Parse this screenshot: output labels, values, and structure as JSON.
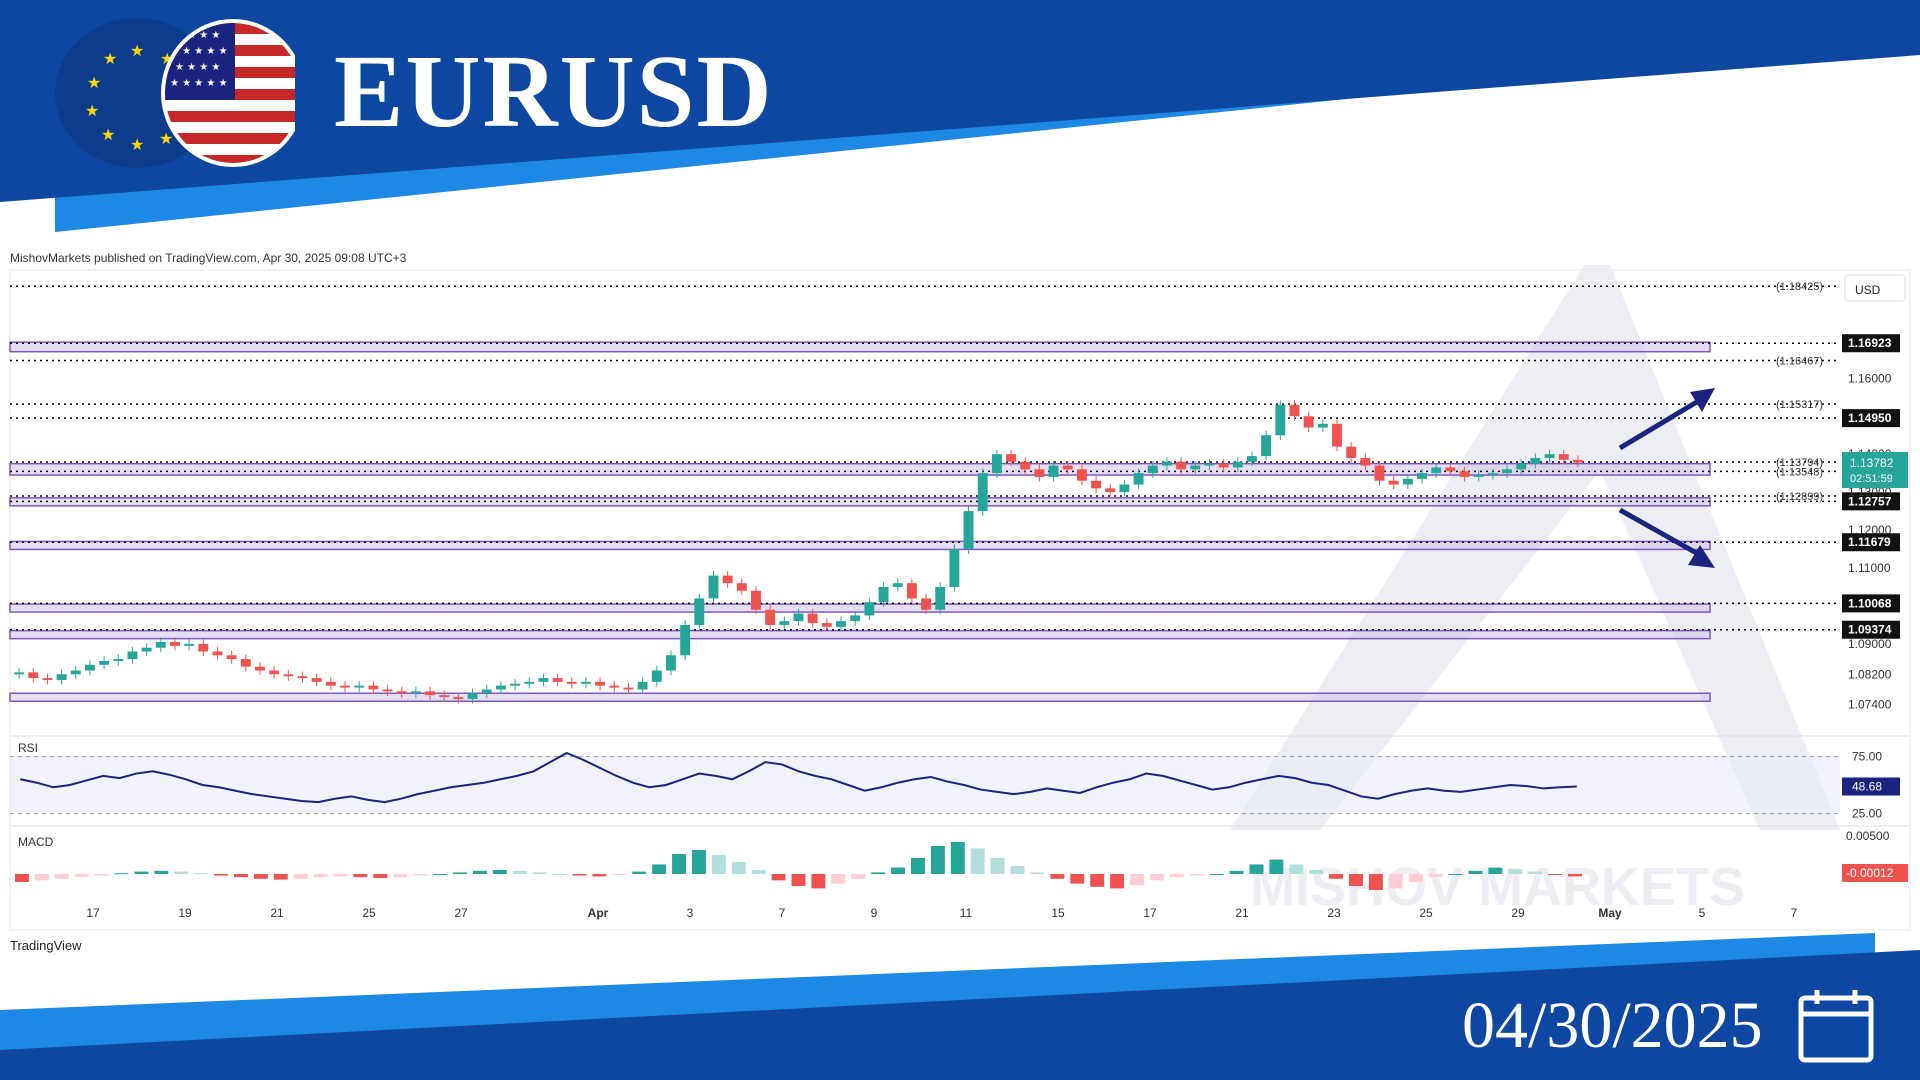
{
  "header": {
    "symbol": "EURUSD",
    "date": "04/30/2025"
  },
  "publisher": "MishovMarkets published on TradingView.com, Apr 30, 2025 09:08 UTC+3",
  "footer": {
    "logo_text": "TradingView"
  },
  "watermark": "MISHOV MARKETS",
  "colors": {
    "banner_blue": "#0d47a1",
    "light_blue": "#1e88e5",
    "up": "#26a69a",
    "down": "#ef5350",
    "zone": "#d1c4e9",
    "zone_border": "#7e57c2",
    "line": "#1a237e"
  },
  "icons": [
    "eu-flag-icon",
    "us-flag-icon",
    "calendar-icon"
  ],
  "chart_data": {
    "type": "candlestick",
    "currency_label": "USD",
    "x_labels": [
      "17",
      "19",
      "21",
      "25",
      "27",
      "Apr",
      "3",
      "7",
      "9",
      "11",
      "15",
      "17",
      "21",
      "23",
      "25",
      "29",
      "May",
      "5",
      "7"
    ],
    "y_ticks": [
      "1.16000",
      "1.14000",
      "1.13000",
      "1.12000",
      "1.11000",
      "1.09000",
      "1.08200",
      "1.07400"
    ],
    "ylim": [
      1.066,
      1.188
    ],
    "current_price": {
      "value": "1.13782",
      "countdown": "02:51:59"
    },
    "close_series": [
      1.0825,
      1.081,
      1.0805,
      1.082,
      1.083,
      1.0845,
      1.0855,
      1.086,
      1.088,
      1.089,
      1.0905,
      1.0895,
      1.09,
      1.088,
      1.087,
      1.086,
      1.084,
      1.083,
      1.082,
      1.0815,
      1.081,
      1.08,
      1.079,
      1.0785,
      1.079,
      1.078,
      1.0775,
      1.077,
      1.0775,
      1.0765,
      1.076,
      1.0755,
      1.077,
      1.078,
      1.079,
      1.0795,
      1.08,
      1.081,
      1.08,
      1.0795,
      1.08,
      1.079,
      1.0785,
      1.078,
      1.08,
      1.083,
      1.087,
      1.095,
      1.102,
      1.108,
      1.106,
      1.104,
      1.099,
      1.095,
      1.096,
      1.098,
      1.0955,
      1.0945,
      1.096,
      1.0975,
      1.101,
      1.105,
      1.106,
      1.102,
      1.099,
      1.105,
      1.115,
      1.125,
      1.135,
      1.14,
      1.138,
      1.136,
      1.134,
      1.137,
      1.136,
      1.133,
      1.131,
      1.13,
      1.132,
      1.135,
      1.137,
      1.138,
      1.136,
      1.137,
      1.1375,
      1.1365,
      1.138,
      1.1395,
      1.145,
      1.153,
      1.15,
      1.147,
      1.148,
      1.142,
      1.139,
      1.137,
      1.133,
      1.132,
      1.1335,
      1.135,
      1.1365,
      1.1355,
      1.134,
      1.1345,
      1.135,
      1.136,
      1.1375,
      1.139,
      1.14,
      1.1385,
      1.1378
    ],
    "levels": [
      {
        "value": "(1.18425)",
        "style": "dotted"
      },
      {
        "value": "1.16923",
        "style": "dotted",
        "label_box": true
      },
      {
        "value": "(1.16467)",
        "style": "dotted"
      },
      {
        "value": "(1.15317)",
        "style": "dotted"
      },
      {
        "value": "1.14950",
        "style": "dotted",
        "label_box": true
      },
      {
        "value": "(1.13794)",
        "style": "dotted"
      },
      {
        "value": "(1.13548)",
        "style": "dotted"
      },
      {
        "value": "(1.12899)",
        "style": "dotted"
      },
      {
        "value": "1.12757",
        "style": "dotted",
        "label_box": true
      },
      {
        "value": "1.11679",
        "style": "dotted",
        "label_box": true
      },
      {
        "value": "1.10068",
        "style": "dotted",
        "label_box": true
      },
      {
        "value": "1.09374",
        "style": "dotted",
        "label_box": true
      }
    ],
    "zones": [
      [
        1.167,
        1.1695
      ],
      [
        1.1345,
        1.1375
      ],
      [
        1.1265,
        1.1285
      ],
      [
        1.115,
        1.117
      ],
      [
        1.0985,
        1.1005
      ],
      [
        1.0915,
        1.0935
      ],
      [
        1.0755,
        1.077
      ]
    ],
    "rsi": {
      "label": "RSI",
      "value": "48.68",
      "levels": [
        "75.00",
        "25.00"
      ],
      "series": [
        55,
        52,
        48,
        50,
        54,
        58,
        56,
        60,
        62,
        59,
        55,
        50,
        48,
        45,
        42,
        40,
        38,
        36,
        35,
        38,
        40,
        37,
        35,
        38,
        42,
        45,
        48,
        50,
        52,
        55,
        58,
        62,
        70,
        78,
        72,
        65,
        58,
        52,
        48,
        50,
        55,
        60,
        58,
        55,
        62,
        70,
        68,
        62,
        58,
        55,
        50,
        45,
        48,
        52,
        55,
        57,
        53,
        50,
        46,
        44,
        42,
        44,
        47,
        45,
        43,
        48,
        52,
        55,
        60,
        58,
        54,
        50,
        46,
        48,
        52,
        55,
        58,
        56,
        52,
        50,
        45,
        40,
        38,
        42,
        45,
        47,
        45,
        44,
        46,
        48,
        50,
        49,
        47,
        48,
        48.68
      ]
    },
    "macd": {
      "label": "MACD",
      "value_top": "0.00500",
      "value": "-0.00012",
      "hist": [
        -0.001,
        -0.0008,
        -0.0006,
        -0.0004,
        -0.0002,
        0.0001,
        0.0003,
        0.0004,
        0.0003,
        0.0001,
        -0.0002,
        -0.0004,
        -0.0006,
        -0.0007,
        -0.0006,
        -0.0004,
        -0.0003,
        -0.0004,
        -0.0005,
        -0.0004,
        -0.0002,
        0.0,
        0.0002,
        0.0004,
        0.0005,
        0.0004,
        0.0002,
        0.0,
        -0.0002,
        -0.0003,
        -0.0001,
        0.0003,
        0.0012,
        0.0025,
        0.003,
        0.0024,
        0.0015,
        0.0005,
        -0.0008,
        -0.0015,
        -0.0018,
        -0.0012,
        -0.0006,
        0.0002,
        0.0008,
        0.002,
        0.0035,
        0.004,
        0.0032,
        0.002,
        0.001,
        0.0002,
        -0.0006,
        -0.0012,
        -0.0016,
        -0.0018,
        -0.0014,
        -0.0008,
        -0.0004,
        -0.0002,
        0.0,
        0.0004,
        0.0012,
        0.0018,
        0.0012,
        0.0005,
        -0.0006,
        -0.0015,
        -0.002,
        -0.0018,
        -0.001,
        -0.0004,
        0.0,
        0.0004,
        0.0008,
        0.0006,
        0.0003,
        -0.0001,
        -0.0003
      ]
    }
  }
}
